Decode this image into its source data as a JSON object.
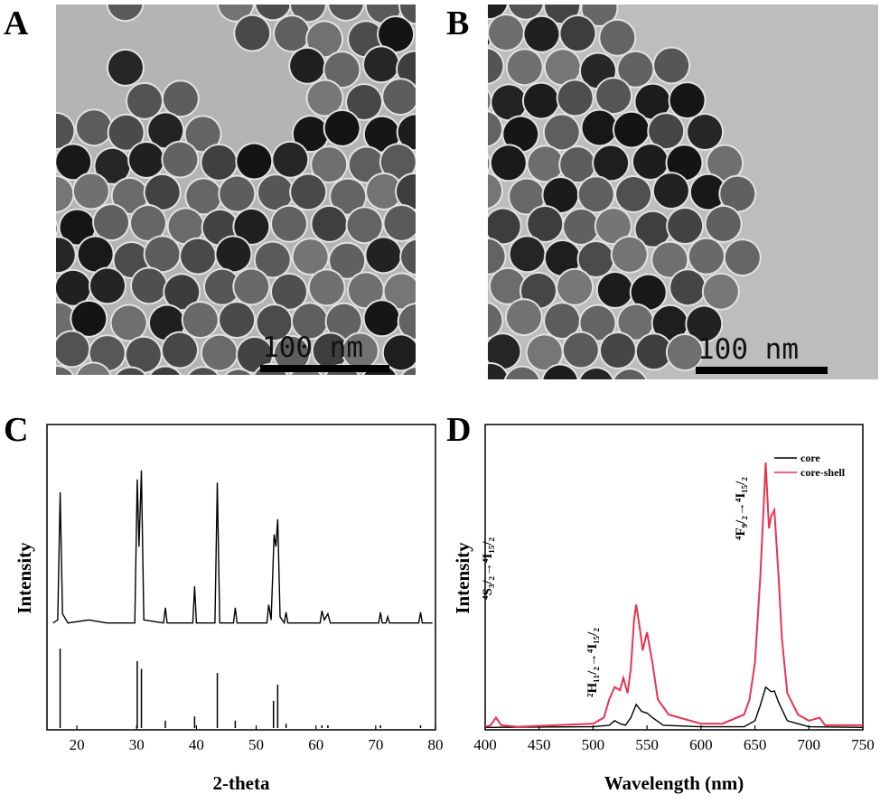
{
  "panels": [
    {
      "label": "A",
      "scale_bar": "100 nm"
    },
    {
      "label": "B",
      "scale_bar": "100 nm"
    }
  ],
  "chart_data": [
    {
      "type": "line",
      "label": "C",
      "xlabel": "2-theta",
      "ylabel": "Intensity",
      "xlim": [
        15,
        80
      ],
      "xticks": [
        20,
        30,
        40,
        50,
        60,
        70,
        80
      ],
      "ylim": [
        0,
        100
      ],
      "series": [
        {
          "color": "#000000",
          "x": [
            16,
            16.8,
            17.2,
            17.6,
            18.5,
            22,
            25,
            29.7,
            30.1,
            30.4,
            30.8,
            31.2,
            34.5,
            34.8,
            35.1,
            39.4,
            39.7,
            40,
            43.1,
            43.5,
            43.9,
            46.2,
            46.5,
            46.8,
            51.8,
            52.1,
            52.5,
            53,
            53.3,
            53.6,
            54,
            54.7,
            55,
            55.3,
            60.7,
            61,
            61.4,
            62,
            62.4,
            70.5,
            70.8,
            71.1,
            71.7,
            72,
            72.3,
            77.2,
            77.5,
            77.8,
            79.5
          ],
          "values": [
            35,
            36,
            77.8,
            38,
            35,
            36,
            35,
            35,
            82,
            60,
            85,
            36,
            35,
            40,
            35,
            35,
            47,
            35,
            35,
            81,
            35,
            35,
            40,
            35,
            35,
            41,
            36,
            64,
            60,
            69,
            37,
            35,
            38.5,
            35,
            35,
            39,
            36,
            38,
            35,
            35,
            38.5,
            35,
            35,
            37,
            35,
            35,
            38.5,
            35,
            35
          ]
        },
        {
          "color": "#000000",
          "style": "stick",
          "x": [
            17.2,
            30.1,
            30.8,
            34.8,
            39.7,
            43.5,
            46.5,
            52.9,
            53.6,
            55,
            61,
            62,
            70.8,
            77.5
          ],
          "values": [
            26.6,
            22.5,
            20,
            3,
            4.4,
            18.6,
            3,
            9.5,
            14.8,
            2,
            1.5,
            1.5,
            1.5,
            1.5
          ]
        }
      ]
    },
    {
      "type": "line",
      "label": "D",
      "xlabel": "Wavelength (nm)",
      "ylabel": "Intensity",
      "xlim": [
        400,
        750
      ],
      "xticks": [
        400,
        450,
        500,
        550,
        600,
        650,
        700,
        750
      ],
      "ylim": [
        0,
        100
      ],
      "legend": "upper right",
      "annotations": [
        "²H₁₁/₂→⁴I₁₅/₂",
        "⁴S₃/₂→⁴I₁₅/₂",
        "⁴F₉/₂→⁴I₁₅/₂"
      ],
      "series": [
        {
          "name": "core",
          "color": "#000000",
          "x": [
            400,
            500,
            515,
            520,
            525,
            530,
            535,
            540,
            545,
            550,
            555,
            565,
            600,
            640,
            650,
            655,
            660,
            665,
            668,
            672,
            680,
            700,
            750
          ],
          "values": [
            0.8,
            1,
            1.5,
            3,
            2,
            1.5,
            4,
            8.3,
            6,
            5.5,
            4,
            1.5,
            1,
            1,
            3,
            8,
            14,
            12.5,
            12.7,
            9,
            3,
            1,
            0.8
          ]
        },
        {
          "name": "core-shell",
          "color": "#e8344e",
          "x": [
            400,
            405,
            410,
            415,
            430,
            500,
            510,
            515,
            520,
            525,
            528,
            532,
            535,
            538,
            540,
            543,
            546,
            550,
            555,
            560,
            570,
            600,
            620,
            640,
            645,
            650,
            655,
            660,
            663,
            665,
            668,
            672,
            675,
            680,
            690,
            700,
            710,
            715,
            750
          ],
          "values": [
            1,
            1.5,
            4,
            1.5,
            1,
            2,
            4,
            10,
            14,
            13,
            17,
            12,
            20,
            36,
            41,
            34,
            26,
            32,
            22,
            10,
            5,
            2,
            2,
            5,
            10,
            22,
            50,
            87.6,
            66,
            70,
            72,
            50,
            30,
            12,
            5,
            3,
            4,
            1.5,
            1.5
          ]
        }
      ]
    }
  ]
}
